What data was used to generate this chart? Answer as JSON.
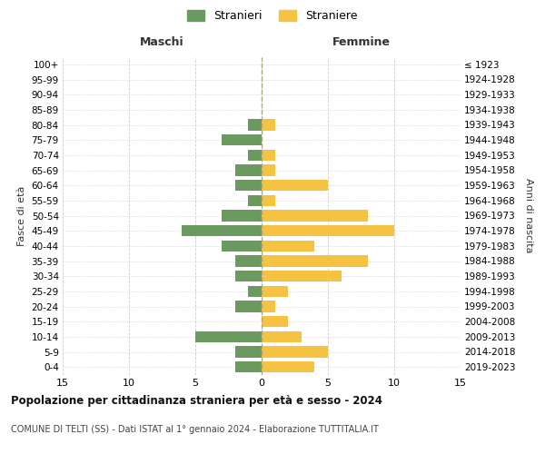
{
  "age_groups": [
    "0-4",
    "5-9",
    "10-14",
    "15-19",
    "20-24",
    "25-29",
    "30-34",
    "35-39",
    "40-44",
    "45-49",
    "50-54",
    "55-59",
    "60-64",
    "65-69",
    "70-74",
    "75-79",
    "80-84",
    "85-89",
    "90-94",
    "95-99",
    "100+"
  ],
  "birth_years": [
    "2019-2023",
    "2014-2018",
    "2009-2013",
    "2004-2008",
    "1999-2003",
    "1994-1998",
    "1989-1993",
    "1984-1988",
    "1979-1983",
    "1974-1978",
    "1969-1973",
    "1964-1968",
    "1959-1963",
    "1954-1958",
    "1949-1953",
    "1944-1948",
    "1939-1943",
    "1934-1938",
    "1929-1933",
    "1924-1928",
    "≤ 1923"
  ],
  "maschi": [
    2,
    2,
    5,
    0,
    2,
    1,
    2,
    2,
    3,
    6,
    3,
    1,
    2,
    2,
    1,
    3,
    1,
    0,
    0,
    0,
    0
  ],
  "femmine": [
    4,
    5,
    3,
    2,
    1,
    2,
    6,
    8,
    4,
    10,
    8,
    1,
    5,
    1,
    1,
    0,
    1,
    0,
    0,
    0,
    0
  ],
  "color_maschi": "#6a9a5f",
  "color_femmine": "#f5c242",
  "bg_color": "#ffffff",
  "grid_color": "#cccccc",
  "title": "Popolazione per cittadinanza straniera per età e sesso - 2024",
  "subtitle": "COMUNE DI TELTI (SS) - Dati ISTAT al 1° gennaio 2024 - Elaborazione TUTTITALIA.IT",
  "xlabel_left": "Maschi",
  "xlabel_right": "Femmine",
  "ylabel_left": "Fasce di età",
  "ylabel_right": "Anni di nascita",
  "legend_maschi": "Stranieri",
  "legend_femmine": "Straniere",
  "xlim": 15,
  "bar_height": 0.75
}
